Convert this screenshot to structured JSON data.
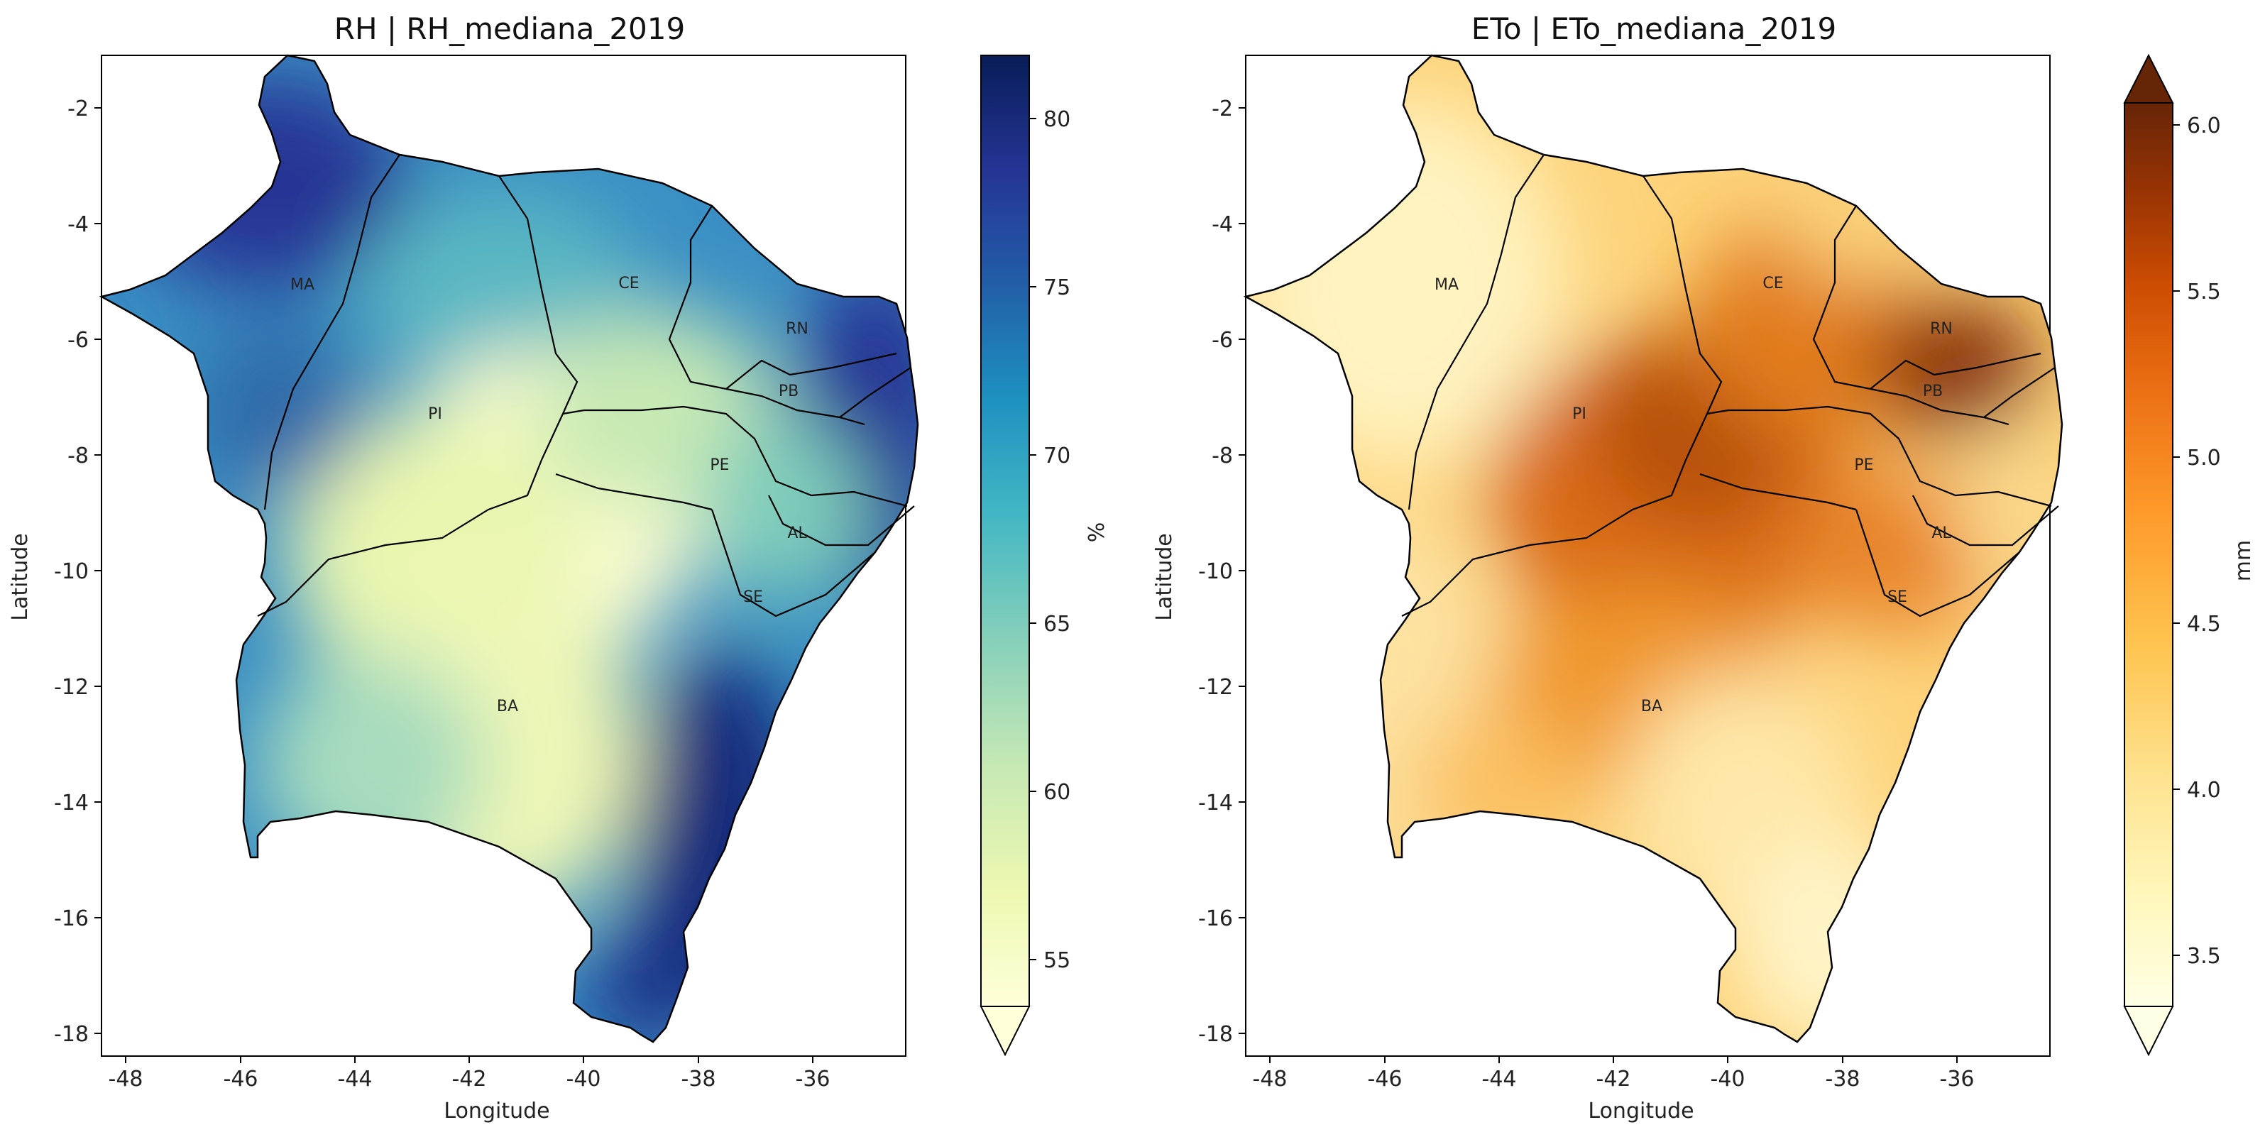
{
  "maps": [
    {
      "title": "RH | RH_mediana_2019",
      "xlabel": "Longitude",
      "ylabel": "Latitude",
      "x_ticks": [
        "-48",
        "-46",
        "-44",
        "-42",
        "-40",
        "-38",
        "-36"
      ],
      "y_ticks": [
        "-2",
        "-4",
        "-6",
        "-8",
        "-10",
        "-12",
        "-14",
        "-16",
        "-18"
      ],
      "colorbar_label": "%",
      "colorbar_ticks": [
        "55",
        "60",
        "65",
        "70",
        "75",
        "80"
      ],
      "colormap": "YlGnBu",
      "ramp_colors": [
        "#ffffd9",
        "#edf8b1",
        "#c7e9b4",
        "#7fcdbb",
        "#41b6c4",
        "#1d91c0",
        "#225ea8",
        "#253494",
        "#081d58"
      ],
      "state_labels": [
        "MA",
        "CE",
        "RN",
        "PB",
        "PI",
        "PE",
        "AL",
        "SE",
        "BA"
      ]
    },
    {
      "title": "ETo | ETo_mediana_2019",
      "xlabel": "Longitude",
      "ylabel": "Latitude",
      "x_ticks": [
        "-48",
        "-46",
        "-44",
        "-42",
        "-40",
        "-38",
        "-36"
      ],
      "y_ticks": [
        "-2",
        "-4",
        "-6",
        "-8",
        "-10",
        "-12",
        "-14",
        "-16",
        "-18"
      ],
      "colorbar_label": "mm",
      "colorbar_ticks": [
        "3.5",
        "4.0",
        "4.5",
        "5.0",
        "5.5",
        "6.0"
      ],
      "colormap": "YlOrBr",
      "ramp_colors": [
        "#ffffe5",
        "#fff7bc",
        "#fee391",
        "#fec44f",
        "#fe9929",
        "#ec7014",
        "#cc4c02",
        "#993404",
        "#662506"
      ],
      "state_labels": [
        "MA",
        "CE",
        "RN",
        "PB",
        "PI",
        "PE",
        "AL",
        "SE",
        "BA"
      ]
    }
  ]
}
